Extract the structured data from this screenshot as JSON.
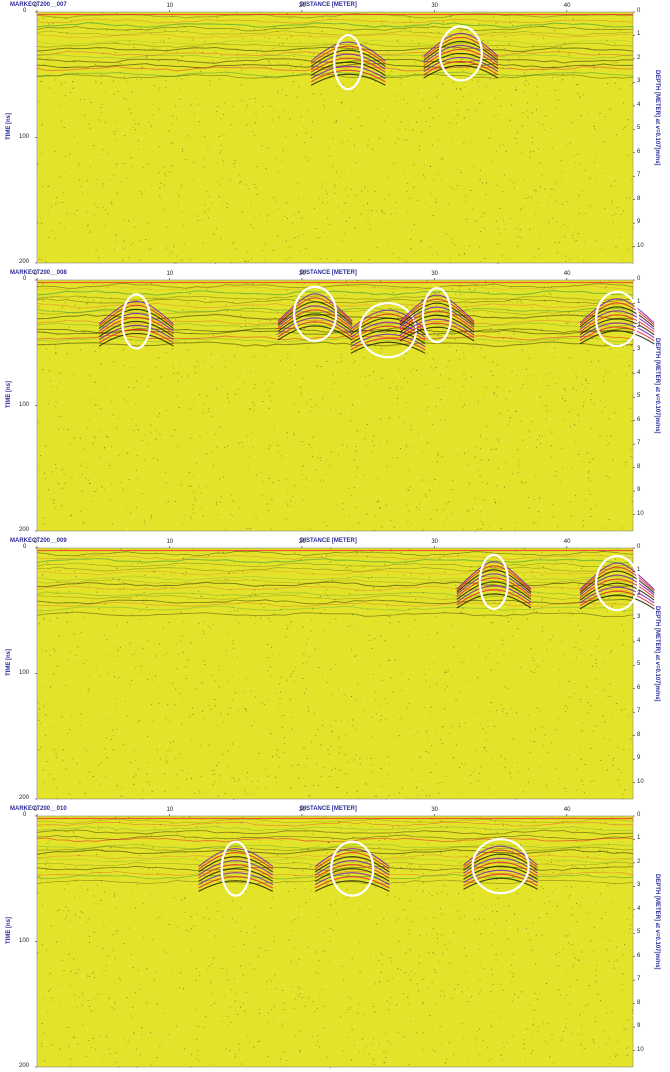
{
  "chart_data": [
    {
      "type": "heatmap",
      "title": "MARKECT200__007",
      "xlabel": "DISTANCE [METER]",
      "ylabel": "TIME [ns]",
      "y2label": "DEPTH [METER] at v=0.107[m/ns]",
      "x_ticks": [
        0,
        10,
        20,
        30,
        40
      ],
      "y_ticks": [
        0,
        100,
        200
      ],
      "y2_ticks": [
        0,
        1,
        2,
        3,
        4,
        5,
        6,
        7,
        8,
        9,
        10
      ],
      "xlim": [
        0,
        45
      ],
      "ylim": [
        0,
        200
      ],
      "y2lim": [
        0,
        10.7
      ],
      "grid": false,
      "anomalies_marked": [
        {
          "distance_m": 23.5,
          "time_ns": 40
        },
        {
          "distance_m": 32.0,
          "time_ns": 33
        }
      ]
    },
    {
      "type": "heatmap",
      "title": "MARKECT200__008",
      "xlabel": "DISTANCE [METER]",
      "ylabel": "TIME [ns]",
      "y2label": "DEPTH [METER] at v=0.107[m/ns]",
      "x_ticks": [
        0,
        10,
        20,
        30,
        40
      ],
      "y_ticks": [
        0,
        100,
        200
      ],
      "y2_ticks": [
        0,
        1,
        2,
        3,
        4,
        5,
        6,
        7,
        8,
        9,
        10
      ],
      "xlim": [
        0,
        45
      ],
      "ylim": [
        0,
        200
      ],
      "y2lim": [
        0,
        10.7
      ],
      "grid": false,
      "anomalies_marked": [
        {
          "distance_m": 7.5,
          "time_ns": 33
        },
        {
          "distance_m": 21.0,
          "time_ns": 27
        },
        {
          "distance_m": 26.5,
          "time_ns": 40
        },
        {
          "distance_m": 30.2,
          "time_ns": 28
        },
        {
          "distance_m": 43.8,
          "time_ns": 31
        }
      ]
    },
    {
      "type": "heatmap",
      "title": "MARKECT200__009",
      "xlabel": "DISTANCE [METER]",
      "ylabel": "TIME [ns]",
      "y2label": "DEPTH [METER] at v=0.107[m/ns]",
      "x_ticks": [
        0,
        10,
        20,
        30,
        40
      ],
      "y_ticks": [
        0,
        100,
        200
      ],
      "y2_ticks": [
        0,
        1,
        2,
        3,
        4,
        5,
        6,
        7,
        8,
        9,
        10
      ],
      "xlim": [
        0,
        45
      ],
      "ylim": [
        0,
        200
      ],
      "y2lim": [
        0,
        10.7
      ],
      "grid": false,
      "anomalies_marked": [
        {
          "distance_m": 34.5,
          "time_ns": 27
        },
        {
          "distance_m": 43.8,
          "time_ns": 28
        }
      ]
    },
    {
      "type": "heatmap",
      "title": "MARKECT200__010",
      "xlabel": "DISTANCE [METER]",
      "ylabel": "TIME [ns]",
      "y2label": "DEPTH [METER] at v=0.107[m/ns]",
      "x_ticks": [
        0,
        10,
        20,
        30,
        40
      ],
      "y_ticks": [
        0,
        100,
        200
      ],
      "y2_ticks": [
        0,
        1,
        2,
        3,
        4,
        5,
        6,
        7,
        8,
        9,
        10
      ],
      "xlim": [
        0,
        45
      ],
      "ylim": [
        0,
        200
      ],
      "y2lim": [
        0,
        10.7
      ],
      "grid": false,
      "anomalies_marked": [
        {
          "distance_m": 15.0,
          "time_ns": 42
        },
        {
          "distance_m": 23.8,
          "time_ns": 42
        },
        {
          "distance_m": 35.0,
          "time_ns": 40
        }
      ]
    }
  ],
  "colors": {
    "background": "#e3e42a",
    "trace_dark": "#1f1f00",
    "trace_red": "#e8242c",
    "trace_purple": "#7a1fb0",
    "trace_green": "#2f9a3a",
    "annotation": "#ffffff",
    "label": "#2b2b9a"
  }
}
